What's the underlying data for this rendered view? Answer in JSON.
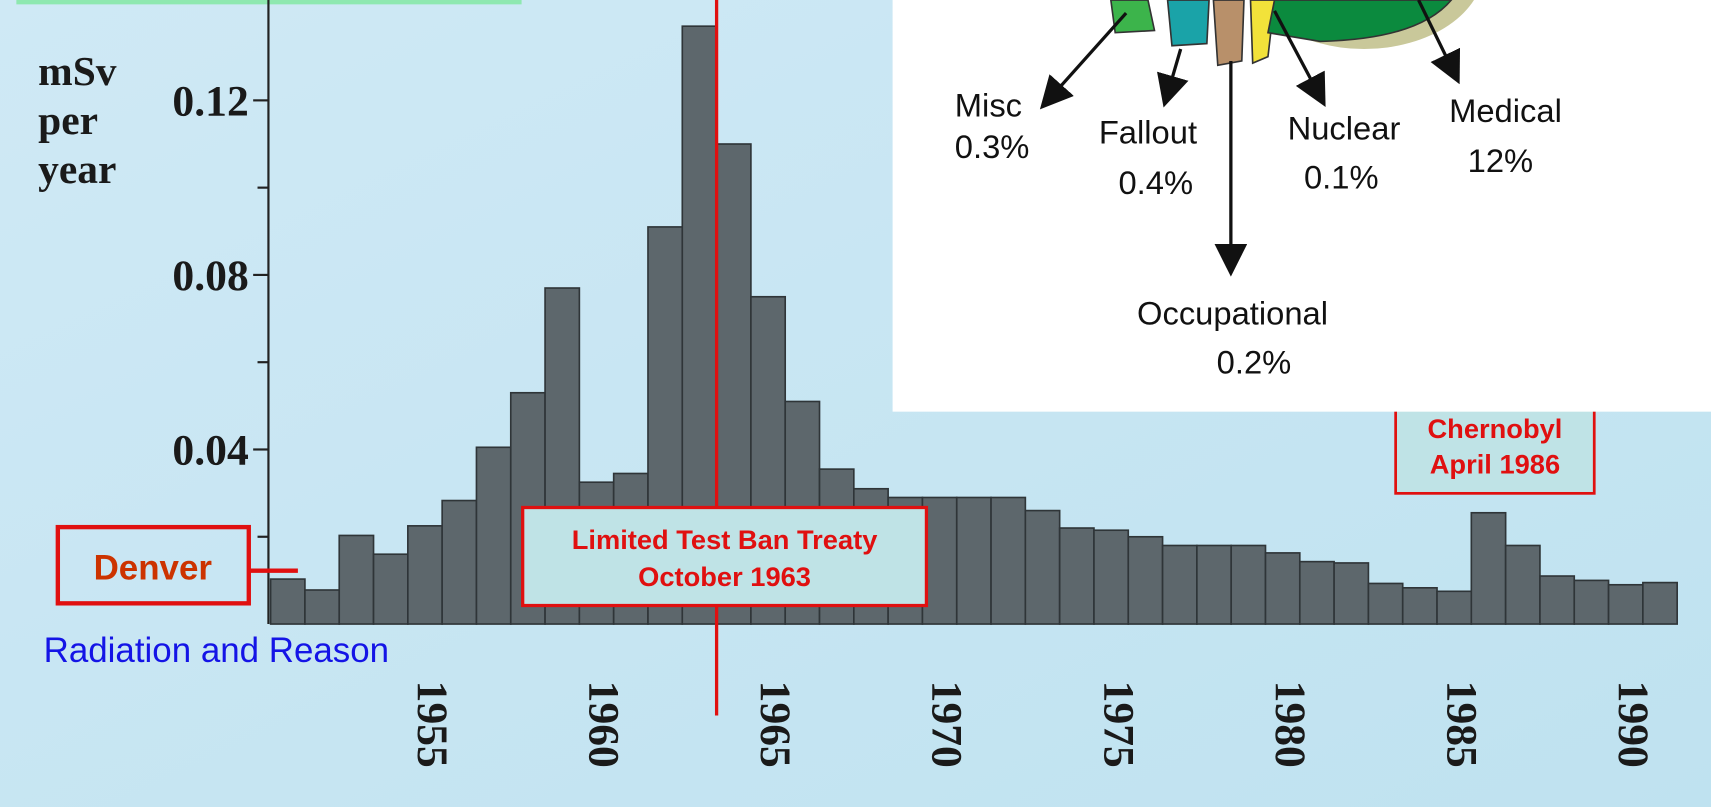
{
  "chart_data": [
    {
      "type": "histogram",
      "ylabel": [
        "mSv",
        "per",
        "year"
      ],
      "bins": [
        1950,
        1951,
        1952,
        1953,
        1954,
        1955,
        1956,
        1957,
        1958,
        1959,
        1960,
        1961,
        1962,
        1963,
        1964,
        1965,
        1966,
        1967,
        1968,
        1969,
        1970,
        1971,
        1972,
        1973,
        1974,
        1975,
        1976,
        1977,
        1978,
        1979,
        1980,
        1981,
        1982,
        1983,
        1984,
        1985,
        1986,
        1987,
        1988,
        1989,
        1990,
        1991
      ],
      "values": [
        0.0103,
        0.0078,
        0.0203,
        0.016,
        0.0225,
        0.0283,
        0.0405,
        0.053,
        0.077,
        0.0325,
        0.0345,
        0.091,
        0.137,
        0.11,
        0.075,
        0.051,
        0.0355,
        0.031,
        0.029,
        0.029,
        0.029,
        0.029,
        0.026,
        0.022,
        0.0215,
        0.02,
        0.018,
        0.018,
        0.018,
        0.0163,
        0.0143,
        0.014,
        0.0093,
        0.0083,
        0.0075,
        0.0255,
        0.018,
        0.011,
        0.01,
        0.009,
        0.0095
      ],
      "color": "#5d676c",
      "xlim": [
        1950,
        1991
      ],
      "xticks": [
        1955,
        1960,
        1965,
        1970,
        1975,
        1980,
        1985,
        1990
      ],
      "ylim": [
        0,
        0.143
      ],
      "yticks": [
        0.04,
        0.08,
        0.12
      ],
      "yticks_minor": [
        0.02,
        0.06,
        0.1
      ],
      "annotations": [
        {
          "text": [
            "Denver"
          ]
        },
        {
          "text": [
            "Limited Test Ban Treaty",
            "October 1963"
          ],
          "x": 1963
        },
        {
          "text": [
            "Chernobyl",
            "April 1986"
          ]
        }
      ],
      "source": "Radiation and Reason"
    },
    {
      "type": "pie",
      "categories": [
        "Misc",
        "Fallout",
        "Occupational",
        "Nuclear",
        "Medical"
      ],
      "values": [
        0.3,
        0.4,
        0.2,
        0.1,
        12
      ],
      "value_labels": [
        "0.3%",
        "0.4%",
        "0.2%",
        "0.1%",
        "12%"
      ],
      "colors": [
        "#3cb44b",
        "#1aa3a8",
        "#b8906a",
        "#f2e23a",
        "#0b8a3e"
      ]
    }
  ]
}
